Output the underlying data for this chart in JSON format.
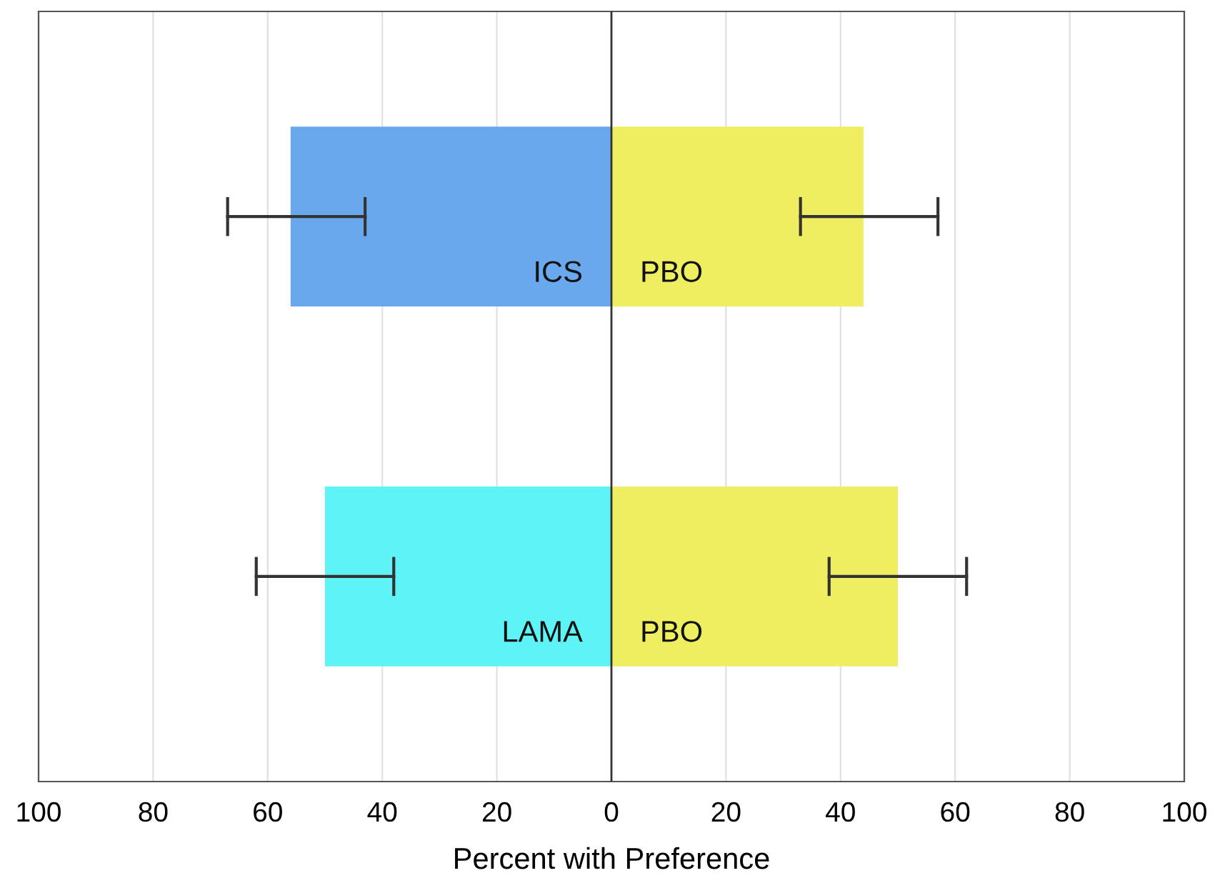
{
  "chart_data": {
    "type": "bar",
    "orientation": "horizontal",
    "stacked": true,
    "xlabel": "Percent with Preference",
    "categories": [
      null,
      null
    ],
    "series": [
      {
        "name": "ICS",
        "color": "#6aa8ee",
        "values": [
          -56,
          null
        ],
        "errors": [
          [
            -67,
            -43
          ],
          null
        ]
      },
      {
        "name": "LAMA",
        "color": "#5ef4f7",
        "values": [
          null,
          -50
        ],
        "errors": [
          null,
          [
            -62,
            -38
          ]
        ]
      },
      {
        "name": "PBO",
        "color": "#eeee60",
        "values": [
          44,
          null
        ],
        "errors": [
          [
            33,
            57
          ],
          null
        ]
      },
      {
        "name": "PBO",
        "color": "#eeee60",
        "values": [
          null,
          50
        ],
        "errors": [
          null,
          [
            38,
            62
          ]
        ]
      }
    ],
    "xlim": [
      -100,
      100
    ],
    "xticks": [
      {
        "value": -100,
        "label": "100"
      },
      {
        "value": -80,
        "label": "80"
      },
      {
        "value": -60,
        "label": "60"
      },
      {
        "value": -40,
        "label": "40"
      },
      {
        "value": -20,
        "label": "20"
      },
      0,
      20,
      40,
      60,
      80,
      100
    ],
    "grid": "x",
    "ref_lines": [
      {
        "axis": "x",
        "value": 0,
        "color": "#333333"
      }
    ]
  }
}
